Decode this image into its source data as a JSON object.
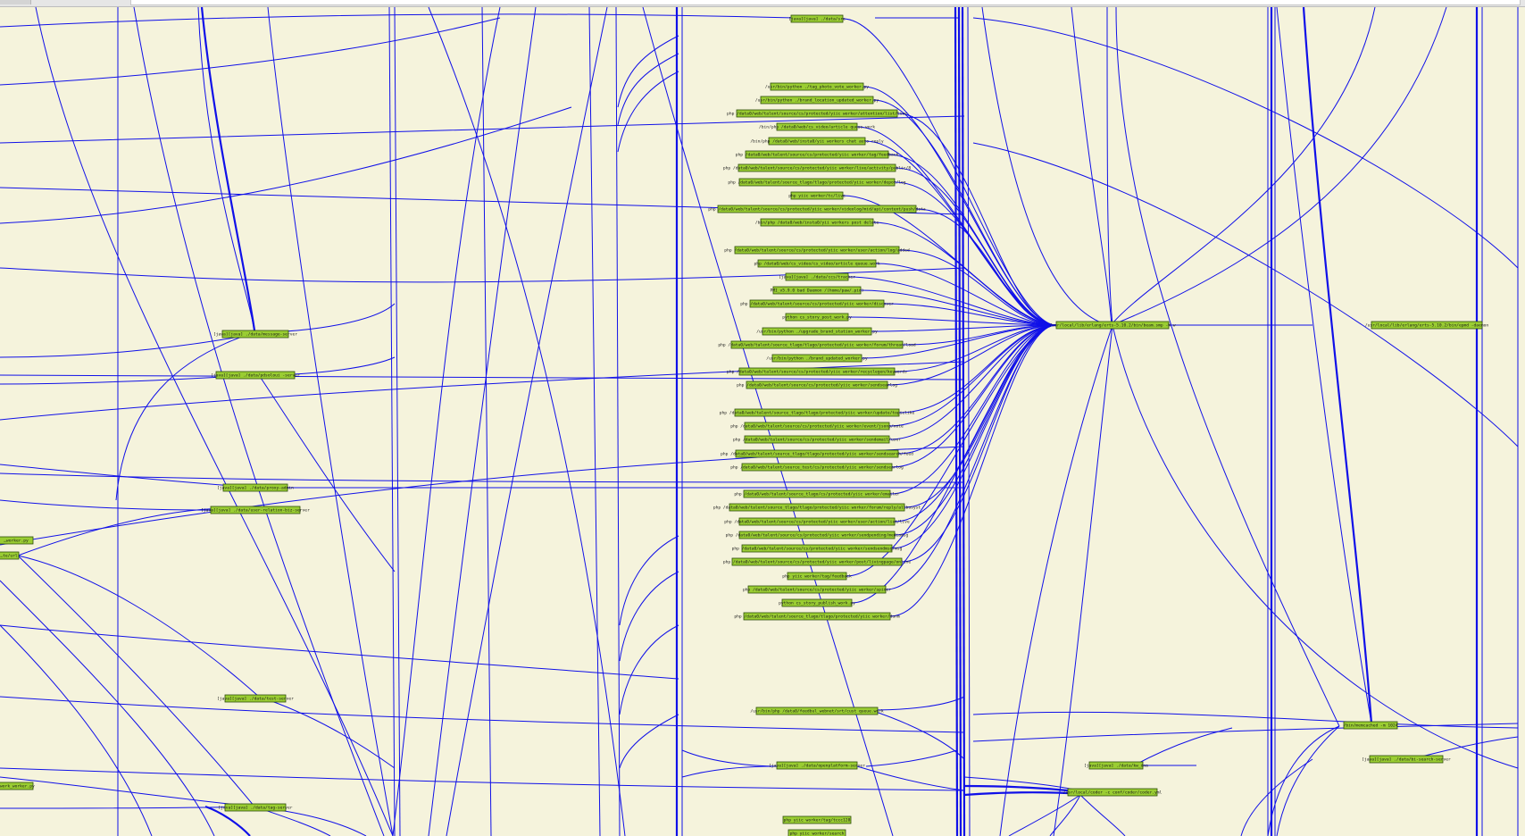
{
  "graph": {
    "edge_color": "#1010e8",
    "node_fill": "#9acd32",
    "background": "#f5f3dc",
    "nodes": [
      {
        "label": "[java][java] ./data/sre"
      },
      {
        "label": "/usr/bin/python ./tag_photo_vote_worker.py"
      },
      {
        "label": "/usr/bin/python ./brand_location_updated_worker.py"
      },
      {
        "label": "php /data0/web/talent/source/cs/protected/yiic worker/attention/list/live"
      },
      {
        "label": "/bin/php /data0/web/cs_video/article queue.work"
      },
      {
        "label": "/bin/php /data0/web/insta0/yii workers chat auto reply"
      },
      {
        "label": "php /data0/web/talent/source/cs/protected/yiic worker/tag/feedback"
      },
      {
        "label": "php /data0/web/talent/source/cs/protected/yiic worker/live/activity/public/8"
      },
      {
        "label": "php /data0/web/talent/source_tlago/tlago/protected/yiic worker/depot/log"
      },
      {
        "label": "php yiic worker/tc/live"
      },
      {
        "label": "php /data0/web/talent/source/cs/protected/yiic worker/videolog/mid/api/content/push/data"
      },
      {
        "label": "/bin/php /data0/web/insta0/yii workers post delete"
      },
      {
        "label": "php /data0/web/talent/source/cs/protected/yiic worker/user/action/log/added"
      },
      {
        "label": "php /data0/web/cs_video/cs_video/article queue.work"
      },
      {
        "label": "[java][java] ./data/ccs/tracker"
      },
      {
        "label": "PMI_v5.9.0 bad Daemon /(home/paw/.pid)"
      },
      {
        "label": "php /data0/web/talent/source/cs/protected/yiic worker/discover"
      },
      {
        "label": "python cs_story_post_work.py"
      },
      {
        "label": "/usr/bin/python ./upgrade_brand_station_worker.py"
      },
      {
        "label": "php /data0/web/talent/source_tlago/tlago/protected/yiic worker/forum/thread/load"
      },
      {
        "label": "/usr/bin/python ./brand_updated_worker.py"
      },
      {
        "label": "php /data0/web/talent/source/cs/protected/yiic worker/recyclegen/keywords"
      },
      {
        "label": "php /data0/web/talent/source/cs/protected/yiic worker/sendsearlog"
      },
      {
        "label": "php /data0/web/talent/source_tlago/tlago/protected/yiic worker/update/topiclike"
      },
      {
        "label": "php /data0/web/talent/source/cs/protected/yiic worker/event/jsonp/note"
      },
      {
        "label": "php /data0/web/talent/source/cs/protected/yiic worker/sendemail/user"
      },
      {
        "label": "php /data0/web/talent/source_tlago/tlago/protected/yiic worker/sendsearch/feed"
      },
      {
        "label": "php /data0/web/talent/source_test/cs/protected/yiic worker/sendsearlog"
      },
      {
        "label": "php /data0/web/talent/source_tlago/cs/protected/yiic worker/emailer"
      },
      {
        "label": "php /data0/web/talent/source_tlago/tlago/protected/yiic worker/forum/reply/allbusyst"
      },
      {
        "label": "php /data0/web/talent/source/cs/protected/yiic worker/user/action/list/live"
      },
      {
        "label": "php /data0/web/talent/source/cs/protected/yiic worker/sendpending/mediamsg"
      },
      {
        "label": "php /data0/web/talent/source/cs/protected/yiic worker/sendsendmsg/msg"
      },
      {
        "label": "php /data0/web/talent/source/cs/protected/yiic worker/post/livingpage/online"
      },
      {
        "label": "php yiic worker/tag/feedback"
      },
      {
        "label": "php /data0/web/talent/source/cs/protected/yiic worker/spider"
      },
      {
        "label": "python cs_story_publish_work.py"
      },
      {
        "label": "php /data0/web/talent/source_tlago/tlago/protected/yiic worker/dunm"
      },
      {
        "label": "/usr/local/lib/erlang/erts-5.10.2/bin/beam.smp -W w"
      },
      {
        "label": "/usr/local/lib/erlang/erts-5.10.2/bin/epmd -daemon"
      },
      {
        "label": "[java][java] ./data/message-server"
      },
      {
        "label": "[java][java] ./data/pdsoloui -server"
      },
      {
        "label": "[java][java] ./data/proxy-admin"
      },
      {
        "label": "[java][java] ./data/user-relation-biz-server"
      },
      {
        "label": "…worker.py"
      },
      {
        "label": "…te/url"
      },
      {
        "label": "[java][java] ./data/test-server"
      },
      {
        "label": "/usr/bin/php /data0/feedbul_webnet/srt/cust queue.work"
      },
      {
        "label": "/bin/memcached -m 1024"
      },
      {
        "label": "[java][java] ./data/openplatform-server"
      },
      {
        "label": "[java][java] ./data/kw_dna"
      },
      {
        "label": "[java][java] ./data/bi-search-server"
      },
      {
        "label": "…work_worker.py"
      },
      {
        "label": "[java][java] ./data/tag-server"
      },
      {
        "label": "/usr/local/coder -c conf/coder/coder.yml"
      },
      {
        "label": "php yiic worker/tag/tccc128"
      },
      {
        "label": "php yiic worker/search"
      }
    ]
  }
}
